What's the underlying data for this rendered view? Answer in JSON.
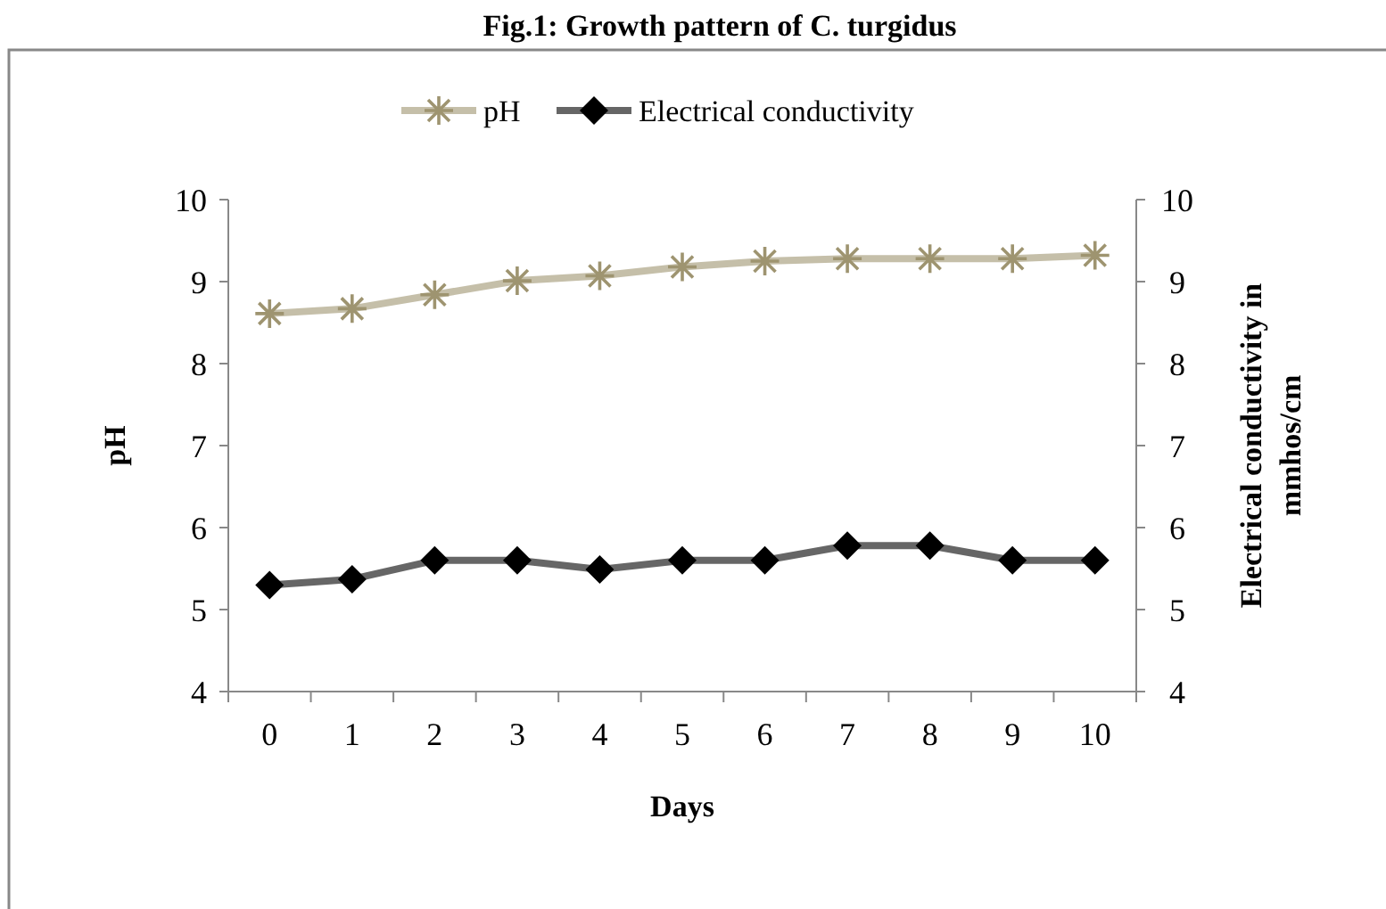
{
  "chart_data": {
    "type": "line",
    "title": "Fig.1: Growth pattern of C. turgidus",
    "xlabel": "Days",
    "ylabel": "pH",
    "y2label": "Electrical conductivity in mmhos/cm",
    "categories": [
      "0",
      "1",
      "2",
      "3",
      "4",
      "5",
      "6",
      "7",
      "8",
      "9",
      "10"
    ],
    "series": [
      {
        "name": "pH",
        "color": "#9e9470",
        "marker": "cross",
        "values": [
          8.61,
          8.67,
          8.84,
          9.01,
          9.07,
          9.18,
          9.25,
          9.28,
          9.28,
          9.28,
          9.32
        ]
      },
      {
        "name": "Electrical conductivity",
        "color": "#000000",
        "marker": "diamond",
        "values": [
          5.3,
          5.37,
          5.6,
          5.6,
          5.49,
          5.6,
          5.6,
          5.78,
          5.78,
          5.6,
          5.6
        ]
      }
    ],
    "ylim": [
      4,
      10
    ],
    "yticks": [
      4,
      5,
      6,
      7,
      8,
      9,
      10
    ],
    "y2lim": [
      4,
      10
    ],
    "y2ticks": [
      4,
      5,
      6,
      7,
      8,
      9,
      10
    ],
    "grid": false,
    "legend": "top",
    "line_style": "solid"
  }
}
